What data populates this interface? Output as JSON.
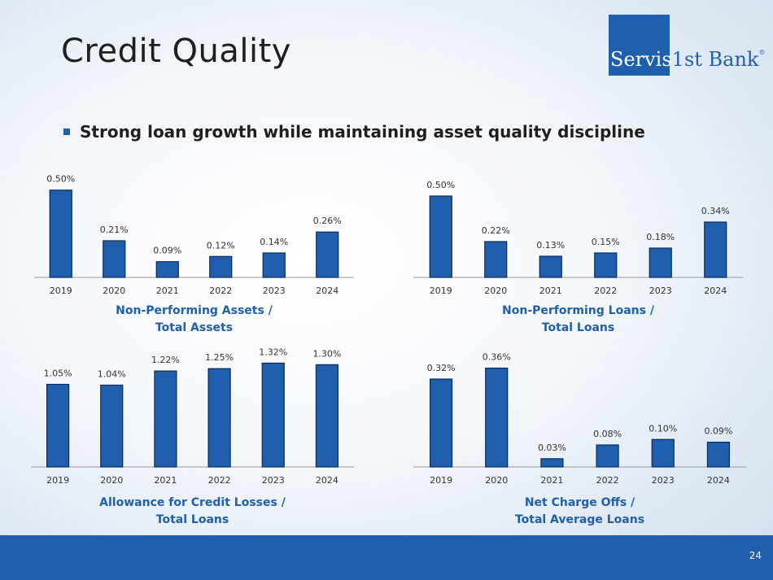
{
  "slide": {
    "title": "Credit Quality",
    "bullet": "Strong loan growth while maintaining asset quality discipline",
    "page_number": "24"
  },
  "logo": {
    "part1": "Servis",
    "part2": "1st Bank",
    "mark": "®"
  },
  "colors": {
    "bar": "#1f5fad",
    "footer": "#1f5fad",
    "title_text": "#1f5fad"
  },
  "chart_data": [
    {
      "type": "bar",
      "title_lines": [
        "Non-Performing Assets /",
        "Total Assets"
      ],
      "categories": [
        "2019",
        "2020",
        "2021",
        "2022",
        "2023",
        "2024"
      ],
      "values": [
        0.5,
        0.21,
        0.09,
        0.12,
        0.14,
        0.26
      ],
      "labels": [
        "0.50%",
        "0.21%",
        "0.09%",
        "0.12%",
        "0.14%",
        "0.26%"
      ],
      "ylim": [
        0,
        0.55
      ]
    },
    {
      "type": "bar",
      "title_lines": [
        "Non-Performing Loans /",
        "Total Loans"
      ],
      "categories": [
        "2019",
        "2020",
        "2021",
        "2022",
        "2023",
        "2024"
      ],
      "values": [
        0.5,
        0.22,
        0.13,
        0.15,
        0.18,
        0.34
      ],
      "labels": [
        "0.50%",
        "0.22%",
        "0.13%",
        "0.15%",
        "0.18%",
        "0.34%"
      ],
      "ylim": [
        0,
        0.55
      ]
    },
    {
      "type": "bar",
      "title_lines": [
        "Allowance for Credit Losses /",
        "Total Loans"
      ],
      "categories": [
        "2019",
        "2020",
        "2021",
        "2022",
        "2023",
        "2024"
      ],
      "values": [
        1.05,
        1.04,
        1.22,
        1.25,
        1.32,
        1.3
      ],
      "labels": [
        "1.05%",
        "1.04%",
        "1.22%",
        "1.25%",
        "1.32%",
        "1.30%"
      ],
      "ylim": [
        0,
        1.5
      ]
    },
    {
      "type": "bar",
      "title_lines": [
        "Net Charge Offs /",
        "Total Average Loans"
      ],
      "categories": [
        "2019",
        "2020",
        "2021",
        "2022",
        "2023",
        "2024"
      ],
      "values": [
        0.32,
        0.36,
        0.03,
        0.08,
        0.1,
        0.09
      ],
      "labels": [
        "0.32%",
        "0.36%",
        "0.03%",
        "0.08%",
        "0.10%",
        "0.09%"
      ],
      "ylim": [
        0,
        0.4
      ]
    }
  ]
}
